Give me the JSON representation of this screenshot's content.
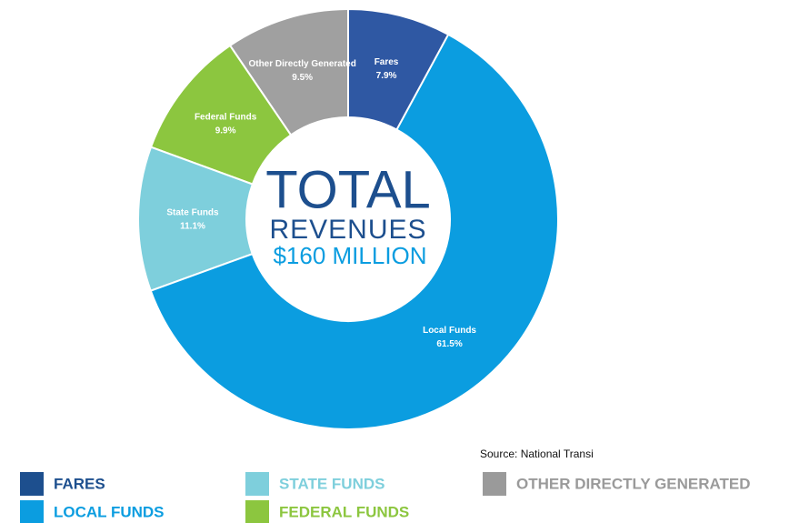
{
  "chart_data": {
    "type": "donut",
    "title": [
      "TOTAL",
      "REVENUES",
      "$160 MILLION"
    ],
    "categories": [
      "Fares",
      "Local Funds",
      "State Funds",
      "Federal Funds",
      "Other Directly Generated"
    ],
    "values": [
      7.9,
      61.5,
      11.1,
      9.9,
      9.5
    ],
    "value_labels": [
      "7.9%",
      "61.5%",
      "11.1%",
      "9.9%",
      "9.5%"
    ],
    "colors": [
      "#2f58a3",
      "#0b9de0",
      "#7ecfdc",
      "#8cc63f",
      "#a0a0a0"
    ],
    "legend": [
      {
        "name": "FARES",
        "color": "#1d4f8e"
      },
      {
        "name": "STATE FUNDS",
        "color": "#7ecfdc"
      },
      {
        "name": "OTHER DIRECTLY GENERATED",
        "color": "#9a9a9a"
      },
      {
        "name": "LOCAL FUNDS",
        "color": "#0b9de0"
      },
      {
        "name": "FEDERAL FUNDS",
        "color": "#8cc63f"
      }
    ],
    "source": "Source: National Transi"
  }
}
